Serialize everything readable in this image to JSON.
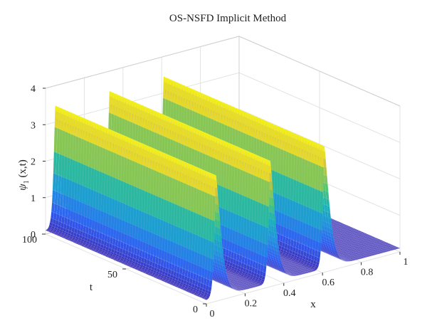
{
  "chart_data": {
    "type": "surface",
    "title": "OS-NSFD Implicit Method",
    "xlabel": "x",
    "ylabel": "t",
    "zlabel": {
      "symbol": "ψ",
      "subscript": "1",
      "rest": " (x,t)"
    },
    "xlim": [
      0,
      1
    ],
    "ylim": [
      0,
      100
    ],
    "zlim": [
      0,
      4
    ],
    "x_ticks": [
      "0",
      "0.2",
      "0.4",
      "0.6",
      "0.8",
      "1"
    ],
    "y_ticks": [
      "0",
      "50",
      "100"
    ],
    "z_ticks": [
      "0",
      "1",
      "2",
      "3",
      "4"
    ],
    "grid": true,
    "colormap": [
      "#3e26a8",
      "#2f5cf2",
      "#1f92de",
      "#19b2b7",
      "#5cc863",
      "#d6c13a",
      "#f9fb0e"
    ],
    "peaks": [
      {
        "x": 0.05,
        "height": 3.45
      },
      {
        "x": 0.33,
        "height": 3.45
      },
      {
        "x": 0.61,
        "height": 3.45
      }
    ],
    "baseline": 0.1
  }
}
